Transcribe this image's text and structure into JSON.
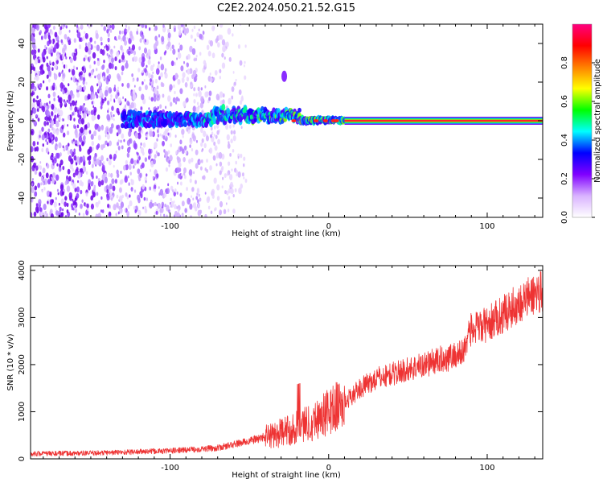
{
  "figure_title": "C2E2.2024.050.21.52.G15",
  "chart_data": [
    {
      "type": "heatmap",
      "xlabel": "Height of straight line (km)",
      "ylabel": "Frequency (Hz)",
      "xlim": [
        -188,
        135
      ],
      "ylim": [
        -50,
        50
      ],
      "xticks": [
        -100,
        0,
        100
      ],
      "yticks": [
        -40,
        -20,
        0,
        20,
        40
      ],
      "colorbar": {
        "label": "Normalized spectral amplitude",
        "ticks": [
          0.0,
          0.2,
          0.4,
          0.6,
          0.8
        ],
        "range": [
          0,
          1
        ],
        "colors": [
          "#ffffff",
          "#d9b3ff",
          "#8000ff",
          "#0000ff",
          "#00ffff",
          "#00ff00",
          "#ffff00",
          "#ff8000",
          "#ff0000",
          "#ff0080"
        ]
      },
      "features": {
        "noise_region_x": [
          -188,
          -52
        ],
        "signal_band_x": [
          -130,
          135
        ],
        "signal_center_hz": 0,
        "blob": {
          "x": -28,
          "y_hz": 23
        }
      },
      "grid": false,
      "legend": "none"
    },
    {
      "type": "line",
      "xlabel": "Height of straight line (km)",
      "ylabel": "SNR (10 * v/v)",
      "xlim": [
        -188,
        135
      ],
      "ylim": [
        0,
        4100
      ],
      "xticks": [
        -100,
        0,
        100
      ],
      "yticks": [
        0,
        1000,
        2000,
        3000,
        4000
      ],
      "series": [
        {
          "color": "#ee3333",
          "trend_x": [
            -188,
            -150,
            -100,
            -70,
            -50,
            -30,
            -10,
            10,
            20,
            30,
            50,
            70,
            85,
            88,
            100,
            120,
            135
          ],
          "trend_y": [
            110,
            120,
            170,
            230,
            380,
            550,
            800,
            1200,
            1500,
            1700,
            1900,
            2100,
            2250,
            2700,
            2850,
            3300,
            3600
          ]
        }
      ],
      "grid": false,
      "legend": "none"
    }
  ]
}
